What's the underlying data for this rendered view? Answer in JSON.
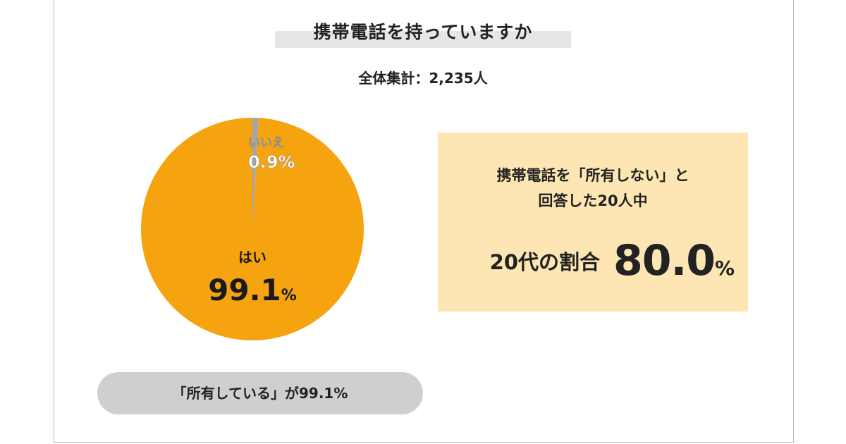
{
  "header": {
    "title": "携帯電話を持っていますか",
    "subtitle": "全体集計：2,235人"
  },
  "chart_data": {
    "type": "pie",
    "slices": [
      {
        "label": "はい",
        "value": 99.1,
        "value_text": "99.1",
        "unit": "%",
        "color": "#f5a30e"
      },
      {
        "label": "いいえ",
        "value": 0.9,
        "value_text": "0.9",
        "unit": "%",
        "color": "#a6a6a6"
      }
    ]
  },
  "info_box": {
    "line1": "携帯電話を「所有しない」と",
    "line2": "回答した20人中",
    "ratio_label": "20代の割合",
    "ratio_value": "80.0",
    "ratio_unit": "%",
    "background": "#fde6b3"
  },
  "note": {
    "text": "「所有している」が99.1%"
  }
}
